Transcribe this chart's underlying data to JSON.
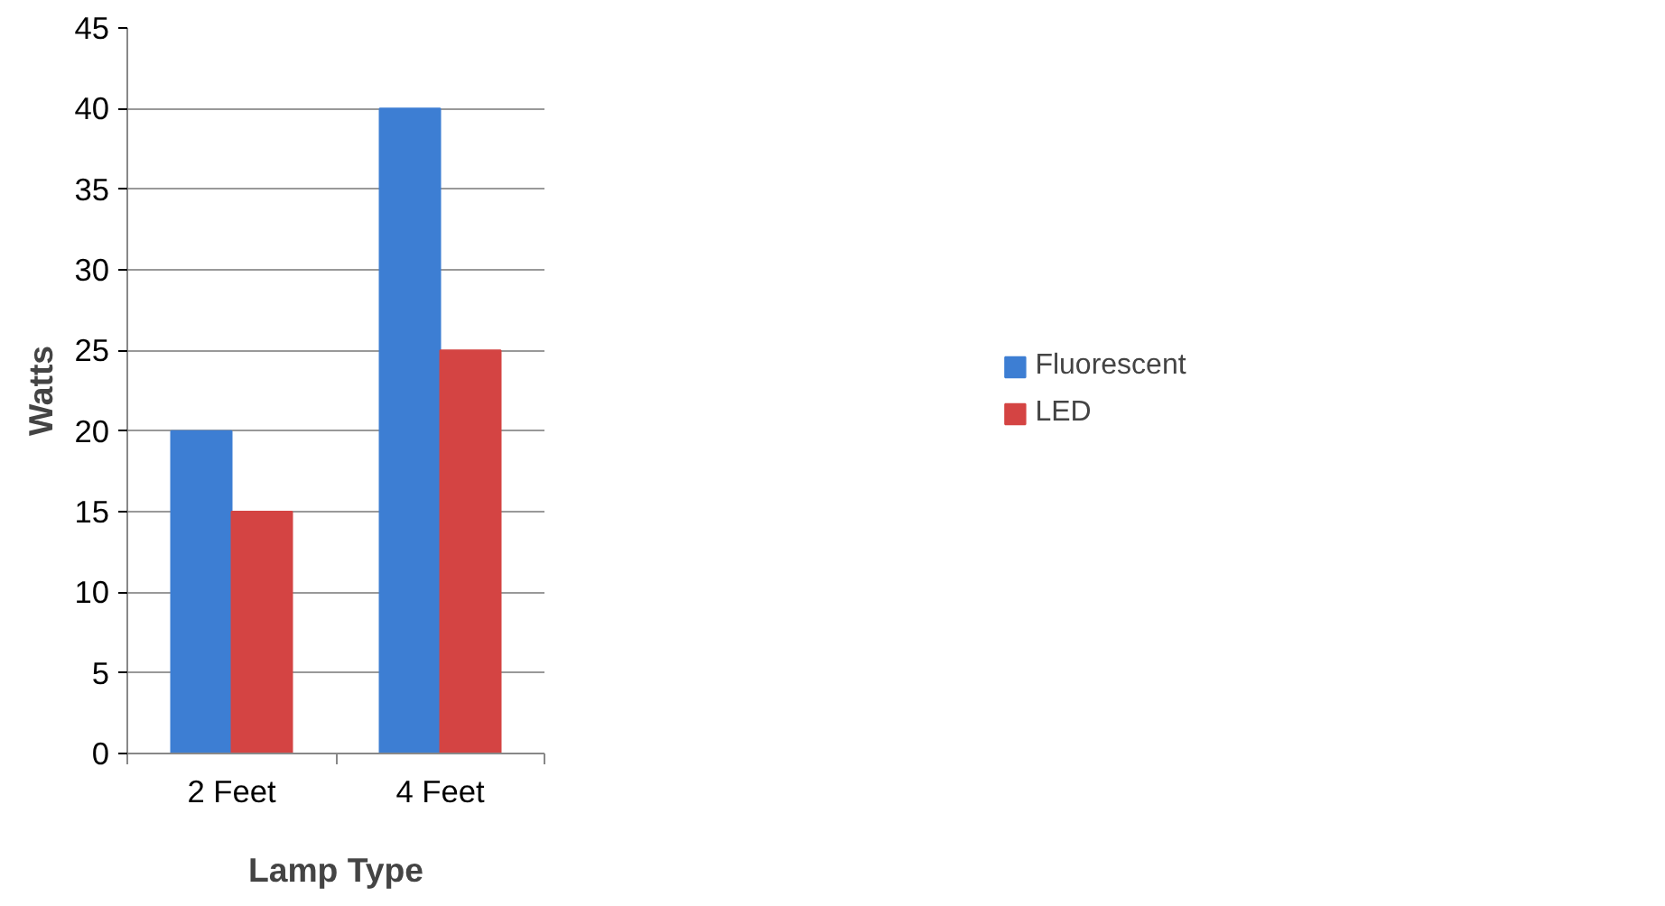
{
  "chart_data": {
    "type": "bar",
    "xlabel": "Lamp Type",
    "ylabel": "Watts",
    "categories": [
      "2 Feet",
      "4 Feet"
    ],
    "series": [
      {
        "name": "Fluorescent",
        "color": "#3d7ed3",
        "values": [
          20,
          40
        ]
      },
      {
        "name": "LED",
        "color": "#d44443",
        "values": [
          15,
          25
        ]
      }
    ],
    "ylim": [
      0,
      45
    ],
    "yticks": [
      0,
      5,
      10,
      15,
      20,
      25,
      30,
      35,
      40,
      45
    ],
    "grid": "y",
    "legend": "right"
  }
}
